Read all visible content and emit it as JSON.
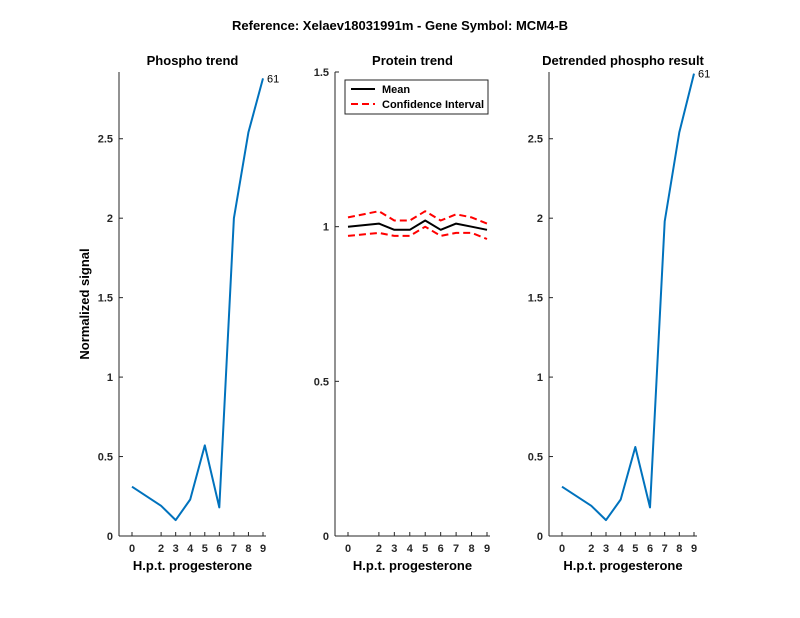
{
  "figure_title": "Reference:  Xelaev18031991m - Gene Symbol:  MCM4-B",
  "colors": {
    "series": "#0072BD",
    "mean": "#000000",
    "ci": "#FF0000",
    "axis": "#262626"
  },
  "chart_data": [
    {
      "type": "line",
      "title": "Phospho trend",
      "xlabel": "H.p.t. progesterone",
      "ylabel": "Normalized signal",
      "x_ticks": [
        0,
        2,
        3,
        4,
        5,
        6,
        7,
        8,
        9
      ],
      "y_ticks": [
        0,
        0.5,
        1,
        1.5,
        2,
        2.5
      ],
      "xlim": [
        0,
        9
      ],
      "ylim": [
        0,
        2.92
      ],
      "series": [
        {
          "x": [
            0,
            2,
            3,
            4,
            5,
            6,
            7,
            8,
            9
          ],
          "y": [
            0.31,
            0.19,
            0.1,
            0.23,
            0.57,
            0.18,
            2.0,
            2.54,
            2.88
          ],
          "color": "#0072BD"
        }
      ],
      "annotations": [
        {
          "text": "61",
          "x": 9,
          "y": 2.88
        }
      ]
    },
    {
      "type": "line",
      "title": "Protein trend",
      "xlabel": "H.p.t. progesterone",
      "ylabel": "",
      "x_ticks": [
        0,
        2,
        3,
        4,
        5,
        6,
        7,
        8,
        9
      ],
      "y_ticks": [
        0,
        0.5,
        1,
        1.5
      ],
      "xlim": [
        0,
        9
      ],
      "ylim": [
        0,
        1.5
      ],
      "legend": {
        "position": "top-left",
        "entries": [
          "Mean",
          "Confidence Interval"
        ]
      },
      "series": [
        {
          "name": "Mean",
          "x": [
            0,
            2,
            3,
            4,
            5,
            6,
            7,
            8,
            9
          ],
          "y": [
            1.0,
            1.01,
            0.99,
            0.99,
            1.02,
            0.99,
            1.01,
            1.0,
            0.99
          ],
          "color": "#000000",
          "style": "solid"
        },
        {
          "name": "Confidence Interval",
          "x": [
            0,
            2,
            3,
            4,
            5,
            6,
            7,
            8,
            9
          ],
          "y": [
            1.03,
            1.05,
            1.02,
            1.02,
            1.05,
            1.02,
            1.04,
            1.03,
            1.01
          ],
          "color": "#FF0000",
          "style": "dashed"
        },
        {
          "name": "Confidence Interval",
          "x": [
            0,
            2,
            3,
            4,
            5,
            6,
            7,
            8,
            9
          ],
          "y": [
            0.97,
            0.98,
            0.97,
            0.97,
            1.0,
            0.97,
            0.98,
            0.98,
            0.96
          ],
          "color": "#FF0000",
          "style": "dashed"
        }
      ]
    },
    {
      "type": "line",
      "title": "Detrended phospho result",
      "xlabel": "H.p.t. progesterone",
      "ylabel": "",
      "x_ticks": [
        0,
        2,
        3,
        4,
        5,
        6,
        7,
        8,
        9
      ],
      "y_ticks": [
        0,
        0.5,
        1,
        1.5,
        2,
        2.5
      ],
      "xlim": [
        0,
        9
      ],
      "ylim": [
        0,
        2.92
      ],
      "series": [
        {
          "x": [
            0,
            2,
            3,
            4,
            5,
            6,
            7,
            8,
            9
          ],
          "y": [
            0.31,
            0.19,
            0.1,
            0.23,
            0.56,
            0.18,
            1.98,
            2.54,
            2.91
          ],
          "color": "#0072BD"
        }
      ],
      "annotations": [
        {
          "text": "61",
          "x": 9,
          "y": 2.91
        }
      ]
    }
  ]
}
